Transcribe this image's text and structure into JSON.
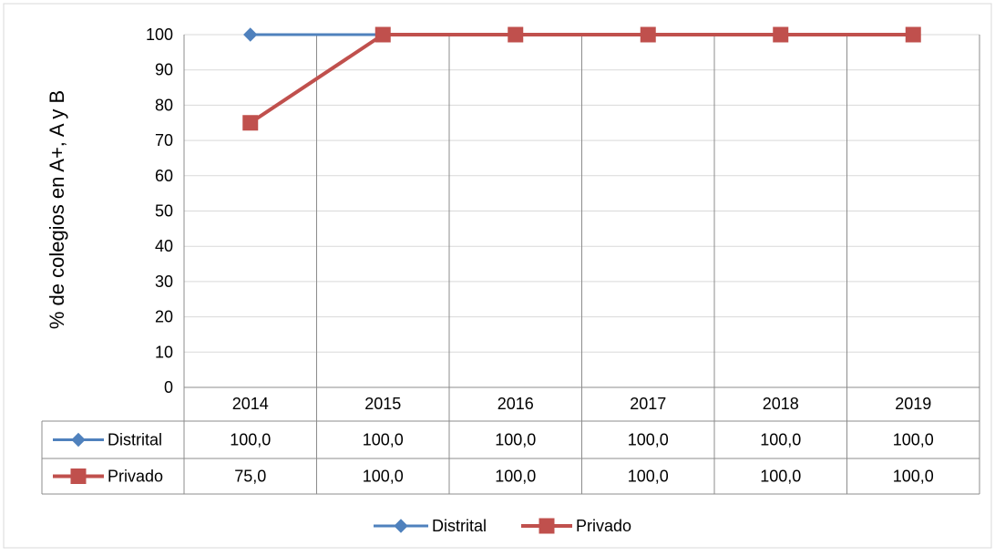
{
  "chart_data": {
    "type": "line",
    "title": "",
    "xlabel": "",
    "ylabel": "% de colegios en A+, A y B",
    "categories": [
      "2014",
      "2015",
      "2016",
      "2017",
      "2018",
      "2019"
    ],
    "ylim": [
      0,
      100
    ],
    "yticks": [
      "0",
      "10",
      "20",
      "30",
      "40",
      "50",
      "60",
      "70",
      "80",
      "90",
      "100"
    ],
    "grid": true,
    "legend_position": "bottom",
    "series": [
      {
        "name": "Distrital",
        "values": [
          100,
          100,
          100,
          100,
          100,
          100
        ],
        "table_values": [
          "100,0",
          "100,0",
          "100,0",
          "100,0",
          "100,0",
          "100,0"
        ],
        "color": "#4F81BD",
        "marker": "diamond"
      },
      {
        "name": "Privado",
        "values": [
          75,
          100,
          100,
          100,
          100,
          100
        ],
        "table_values": [
          "75,0",
          "100,0",
          "100,0",
          "100,0",
          "100,0",
          "100,0"
        ],
        "color": "#C0504D",
        "marker": "square"
      }
    ]
  }
}
